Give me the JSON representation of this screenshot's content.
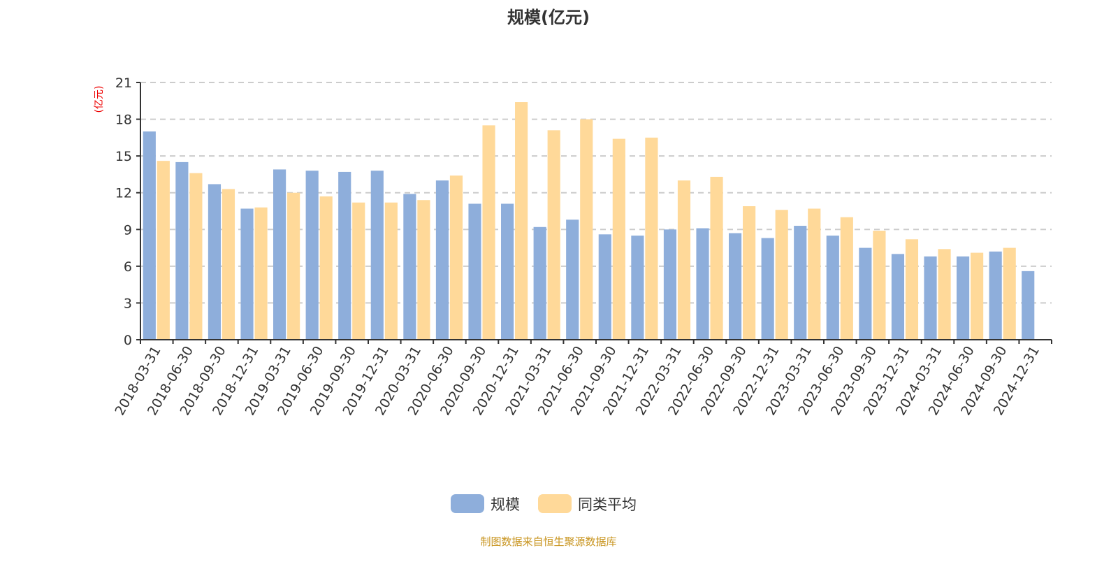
{
  "chart_data": {
    "type": "bar",
    "title": "规模(亿元)",
    "ylabel": "(亿元)",
    "ylim": [
      0,
      21
    ],
    "yticks": [
      0,
      3,
      6,
      9,
      12,
      15,
      18,
      21
    ],
    "grid": true,
    "legend_placement": "bottom",
    "categories": [
      "2018-03-31",
      "2018-06-30",
      "2018-09-30",
      "2018-12-31",
      "2019-03-31",
      "2019-06-30",
      "2019-09-30",
      "2019-12-31",
      "2020-03-31",
      "2020-06-30",
      "2020-09-30",
      "2020-12-31",
      "2021-03-31",
      "2021-06-30",
      "2021-09-30",
      "2021-12-31",
      "2022-03-31",
      "2022-06-30",
      "2022-09-30",
      "2022-12-31",
      "2023-03-31",
      "2023-06-30",
      "2023-09-30",
      "2023-12-31",
      "2024-03-31",
      "2024-06-30",
      "2024-09-30",
      "2024-12-31"
    ],
    "series": [
      {
        "name": "规模",
        "color": "#8eaedb",
        "values": [
          17.0,
          14.5,
          12.7,
          10.7,
          13.9,
          13.8,
          13.7,
          13.8,
          11.9,
          13.0,
          11.1,
          11.1,
          9.2,
          9.8,
          8.6,
          8.5,
          9.0,
          9.1,
          8.7,
          8.3,
          9.3,
          8.5,
          7.5,
          7.0,
          6.8,
          6.8,
          7.2,
          5.6
        ]
      },
      {
        "name": "同类平均",
        "color": "#ffd999",
        "values": [
          14.6,
          13.6,
          12.3,
          10.8,
          12.0,
          11.7,
          11.2,
          11.2,
          11.4,
          13.4,
          17.5,
          19.4,
          17.1,
          18.0,
          16.4,
          16.5,
          13.0,
          13.3,
          10.9,
          10.6,
          10.7,
          10.0,
          8.9,
          8.2,
          7.4,
          7.1,
          7.5,
          null
        ]
      }
    ]
  },
  "source": "制图数据来自恒生聚源数据库"
}
